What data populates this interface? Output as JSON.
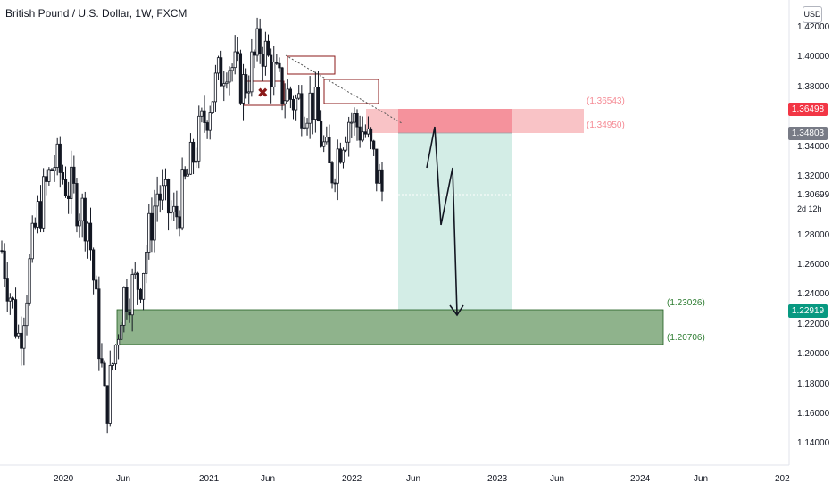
{
  "header": {
    "symbol_title": "British Pound / U.S. Dollar, 1W, FXCM",
    "currency_button": "USD"
  },
  "price_axis": {
    "ticks": [
      "1.42000",
      "1.40000",
      "1.38000",
      "1.34000",
      "1.32000",
      "1.28000",
      "1.26000",
      "1.24000",
      "1.22000",
      "1.20000",
      "1.18000",
      "1.16000",
      "1.14000"
    ],
    "badge_red": "1.36498",
    "badge_gray": "1.34803",
    "badge_green": "1.22919",
    "last_price": "1.30699",
    "countdown": "2d 12h"
  },
  "time_axis": {
    "ticks": [
      "2020",
      "Jun",
      "2021",
      "Jun",
      "2022",
      "Jun",
      "2023",
      "Jun",
      "2024",
      "Jun",
      "202"
    ]
  },
  "zones": {
    "stop_top": "(1.36543)",
    "stop_bottom": "(1.34950)",
    "target_top": "(1.23026)",
    "target_bottom": "(1.20706)"
  },
  "colors": {
    "up": "#131722",
    "down": "#131722",
    "stop_zone": "#f7a9ae",
    "stop_zone_strong": "#f58a94",
    "profit_zone": "#d3ede6",
    "target_zone": "#8fb38c",
    "target_border": "#1e5c1f",
    "red_box": "#8b1a1a",
    "badge_red": "#f23645",
    "badge_gray": "#787b86",
    "badge_green": "#089981"
  },
  "chart_data": {
    "type": "candlestick",
    "symbol": "GBP/USD",
    "timeframe": "1W",
    "source": "FXCM",
    "ylim": [
      1.13,
      1.43
    ],
    "x_ticks": [
      "2020",
      "Jun",
      "2021",
      "Jun",
      "2022",
      "Jun",
      "2023",
      "Jun",
      "2024",
      "Jun"
    ],
    "series": [
      {
        "name": "price_path_approx",
        "points": [
          [
            "2019-06",
            1.27
          ],
          [
            "2019-08",
            1.21
          ],
          [
            "2019-10",
            1.29
          ],
          [
            "2019-12",
            1.33
          ],
          [
            "2020-01",
            1.31
          ],
          [
            "2020-02",
            1.29
          ],
          [
            "2020-03",
            1.16
          ],
          [
            "2020-04",
            1.24
          ],
          [
            "2020-06",
            1.25
          ],
          [
            "2020-07",
            1.31
          ],
          [
            "2020-09",
            1.29
          ],
          [
            "2020-11",
            1.33
          ],
          [
            "2021-01",
            1.37
          ],
          [
            "2021-02",
            1.4
          ],
          [
            "2021-04",
            1.38
          ],
          [
            "2021-06",
            1.41
          ],
          [
            "2021-07",
            1.38
          ],
          [
            "2021-09",
            1.37
          ],
          [
            "2021-10",
            1.37
          ],
          [
            "2021-12",
            1.32
          ],
          [
            "2022-01",
            1.36
          ],
          [
            "2022-02",
            1.35
          ],
          [
            "2022-03",
            1.31
          ]
        ]
      }
    ],
    "zones": [
      {
        "name": "stop",
        "top": 1.36543,
        "bottom": 1.3495
      },
      {
        "name": "target",
        "top": 1.23026,
        "bottom": 1.20706
      }
    ],
    "current_price": 1.30699
  }
}
